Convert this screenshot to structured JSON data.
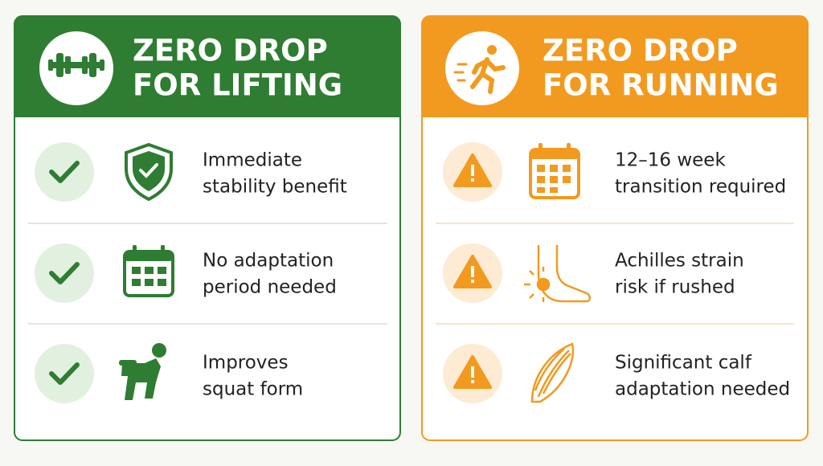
{
  "panels": [
    {
      "title": [
        "ZERO DROP",
        "FOR LIFTING"
      ],
      "items": [
        [
          "Immediate",
          "stability benefit"
        ],
        [
          "No adaptation",
          "period needed"
        ],
        [
          "Improves",
          "squat form"
        ]
      ]
    },
    {
      "title": [
        "ZERO DROP",
        "FOR RUNNING"
      ],
      "items": [
        [
          "12–16 week",
          "transition required"
        ],
        [
          "Achilles strain",
          "risk if rushed"
        ],
        [
          "Significant calf",
          "adaptation needed"
        ]
      ]
    }
  ]
}
